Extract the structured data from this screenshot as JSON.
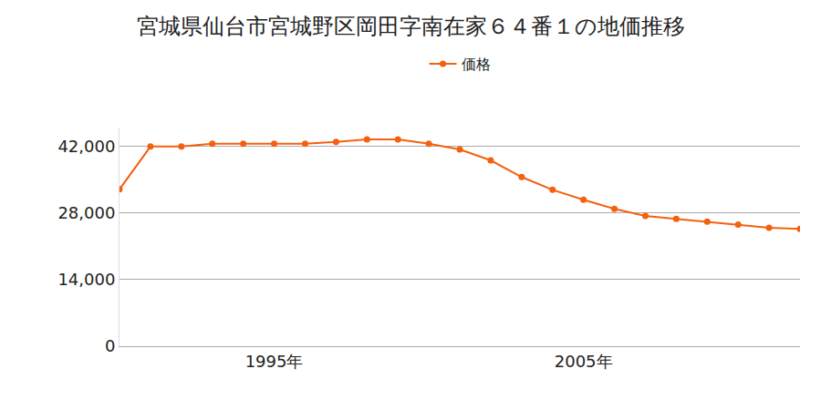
{
  "chart_data": {
    "type": "line",
    "title": "宮城県仙台市宮城野区岡田字南在家６４番１の地価推移",
    "x": [
      1990,
      1991,
      1992,
      1993,
      1994,
      1995,
      1996,
      1997,
      1998,
      1999,
      2000,
      2001,
      2002,
      2003,
      2004,
      2005,
      2006,
      2007,
      2008,
      2009,
      2010,
      2011,
      2012
    ],
    "series": [
      {
        "name": "価格",
        "color": "#f5600f",
        "values": [
          33000,
          42000,
          42000,
          42600,
          42600,
          42600,
          42600,
          43000,
          43500,
          43500,
          42600,
          41400,
          39100,
          35600,
          32900,
          30800,
          28900,
          27400,
          26800,
          26200,
          25600,
          24900,
          24700
        ]
      }
    ],
    "xlim": [
      1990,
      2012
    ],
    "xticks": [
      {
        "value": 1995,
        "label": "1995年"
      },
      {
        "value": 2005,
        "label": "2005年"
      }
    ],
    "ylim": [
      0,
      46000
    ],
    "yticks": [
      0,
      {
        "value": 14000,
        "label": "14,000"
      },
      {
        "value": 28000,
        "label": "28,000"
      },
      {
        "value": 42000,
        "label": "42,000"
      }
    ],
    "grid": true,
    "legend": "top",
    "marker": "circle"
  }
}
